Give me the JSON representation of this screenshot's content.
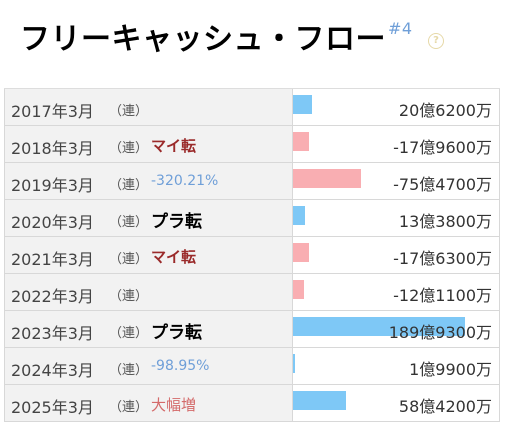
{
  "header": {
    "title": "フリーキャッシュ・フロー",
    "title_sup": "#4",
    "help_icon": "question-circle-icon"
  },
  "colors": {
    "positive_bar": "#7ec8f6",
    "negative_bar": "#f9aeb2",
    "badge_mai": "#9a2a2a",
    "badge_pct": "#6f9fd8",
    "badge_dai": "#d46a6a"
  },
  "bar_scale_max_oku": 190,
  "rows": [
    {
      "period": "2017年3月",
      "type": "（連）",
      "badge": "",
      "badge_kind": "",
      "value": "20億6200万",
      "amount_oku": 20.62
    },
    {
      "period": "2018年3月",
      "type": "（連）",
      "badge": "マイ転",
      "badge_kind": "mai",
      "value": "-17億9600万",
      "amount_oku": -17.96
    },
    {
      "period": "2019年3月",
      "type": "（連）",
      "badge": "-320.21%",
      "badge_kind": "pct",
      "value": "-75億4700万",
      "amount_oku": -75.47
    },
    {
      "period": "2020年3月",
      "type": "（連）",
      "badge": "プラ転",
      "badge_kind": "pura",
      "value": "13億3800万",
      "amount_oku": 13.38
    },
    {
      "period": "2021年3月",
      "type": "（連）",
      "badge": "マイ転",
      "badge_kind": "mai",
      "value": "-17億6300万",
      "amount_oku": -17.63
    },
    {
      "period": "2022年3月",
      "type": "（連）",
      "badge": "",
      "badge_kind": "",
      "value": "-12億1100万",
      "amount_oku": -12.11
    },
    {
      "period": "2023年3月",
      "type": "（連）",
      "badge": "プラ転",
      "badge_kind": "pura",
      "value": "189億9300万",
      "amount_oku": 189.93
    },
    {
      "period": "2024年3月",
      "type": "（連）",
      "badge": "-98.95%",
      "badge_kind": "pct",
      "value": "1億9900万",
      "amount_oku": 1.99
    },
    {
      "period": "2025年3月",
      "type": "（連）",
      "badge": "大幅増",
      "badge_kind": "dai",
      "value": "58億4200万",
      "amount_oku": 58.42
    }
  ]
}
